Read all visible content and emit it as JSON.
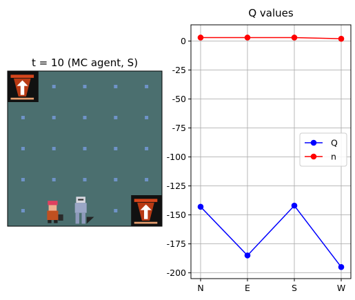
{
  "left_panel": {
    "title": "t = 10 (MC agent, S)",
    "grid": {
      "cols": 5,
      "rows": 5,
      "background": "#4b6f6f",
      "dot_color": "#6f93c8"
    },
    "sprites": [
      {
        "name": "exit-tile-icon",
        "col": 0,
        "row": 0
      },
      {
        "name": "exit-tile-icon",
        "col": 4,
        "row": 4
      },
      {
        "name": "agent-character-icon",
        "col": 1,
        "row": 4
      },
      {
        "name": "pursuer-character-icon",
        "col": 2,
        "row": 4
      }
    ]
  },
  "chart_data": {
    "type": "line",
    "title": "Q values",
    "categories": [
      "N",
      "E",
      "S",
      "W"
    ],
    "ylim": [
      -205,
      14
    ],
    "yticks": [
      0,
      -25,
      -50,
      -75,
      -100,
      -125,
      -150,
      -175,
      -200
    ],
    "grid": true,
    "legend_position": "center-right",
    "series": [
      {
        "name": "Q",
        "color": "#0000ff",
        "values": [
          -143,
          -185,
          -142,
          -195
        ]
      },
      {
        "name": "n",
        "color": "#ff0000",
        "values": [
          3,
          3,
          3,
          2
        ]
      }
    ]
  }
}
